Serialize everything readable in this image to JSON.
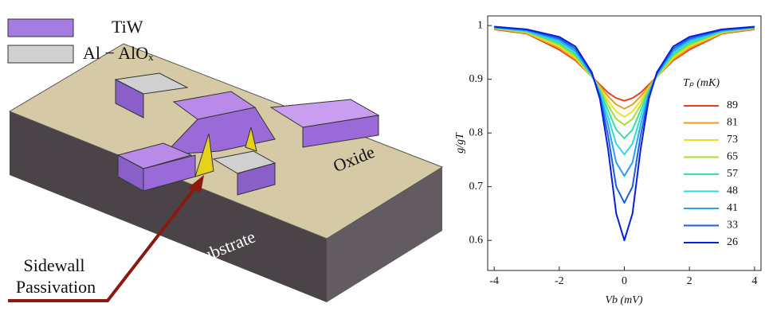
{
  "diagram": {
    "legend": [
      {
        "label": "TiW"
      },
      {
        "label": "Al − AlOₓ"
      }
    ],
    "labels": {
      "oxide": "Oxide",
      "substrate": "Si Substrate",
      "sidewall": "Sidewall",
      "passivation": "Passivation"
    }
  },
  "chart_data": {
    "type": "line",
    "xlabel": "Vb (mV)",
    "ylabel": "g/gT",
    "legend_title": "Tₚ (mK)",
    "x": [
      -4,
      -3,
      -2,
      -1.5,
      -1,
      -0.75,
      -0.5,
      -0.25,
      0,
      0.25,
      0.5,
      0.75,
      1,
      1.5,
      2,
      3,
      4
    ],
    "xlim": [
      -4.2,
      4.2
    ],
    "xticks": [
      -4,
      -2,
      0,
      2,
      4
    ],
    "ylim": [
      0.544,
      1.018
    ],
    "yticks": [
      0.6,
      0.7,
      0.8,
      0.9,
      1
    ],
    "series": [
      {
        "name": "89",
        "color": "#e8401c",
        "values": [
          0.993,
          0.985,
          0.955,
          0.935,
          0.905,
          0.89,
          0.875,
          0.865,
          0.86,
          0.865,
          0.875,
          0.89,
          0.905,
          0.935,
          0.955,
          0.985,
          0.993
        ]
      },
      {
        "name": "81",
        "color": "#f39a1a",
        "values": [
          0.994,
          0.986,
          0.958,
          0.937,
          0.905,
          0.887,
          0.868,
          0.853,
          0.845,
          0.853,
          0.868,
          0.887,
          0.905,
          0.937,
          0.958,
          0.986,
          0.994
        ]
      },
      {
        "name": "73",
        "color": "#ece020",
        "values": [
          0.995,
          0.987,
          0.961,
          0.94,
          0.905,
          0.884,
          0.86,
          0.84,
          0.83,
          0.84,
          0.86,
          0.884,
          0.905,
          0.94,
          0.961,
          0.987,
          0.995
        ]
      },
      {
        "name": "65",
        "color": "#a6e030",
        "values": [
          0.995,
          0.988,
          0.964,
          0.943,
          0.906,
          0.882,
          0.852,
          0.826,
          0.815,
          0.826,
          0.852,
          0.882,
          0.906,
          0.943,
          0.964,
          0.988,
          0.995
        ]
      },
      {
        "name": "57",
        "color": "#38e0a0",
        "values": [
          0.996,
          0.989,
          0.967,
          0.946,
          0.907,
          0.879,
          0.842,
          0.806,
          0.79,
          0.806,
          0.842,
          0.879,
          0.907,
          0.946,
          0.967,
          0.989,
          0.996
        ]
      },
      {
        "name": "48",
        "color": "#30d8e0",
        "values": [
          0.996,
          0.99,
          0.97,
          0.95,
          0.908,
          0.876,
          0.83,
          0.78,
          0.76,
          0.78,
          0.83,
          0.876,
          0.908,
          0.95,
          0.97,
          0.99,
          0.996
        ]
      },
      {
        "name": "41",
        "color": "#2aa0f0",
        "values": [
          0.997,
          0.991,
          0.973,
          0.953,
          0.909,
          0.872,
          0.815,
          0.745,
          0.72,
          0.745,
          0.815,
          0.872,
          0.909,
          0.953,
          0.973,
          0.991,
          0.997
        ]
      },
      {
        "name": "33",
        "color": "#1a5fe0",
        "values": [
          0.997,
          0.992,
          0.976,
          0.957,
          0.911,
          0.868,
          0.795,
          0.7,
          0.67,
          0.7,
          0.795,
          0.868,
          0.911,
          0.957,
          0.976,
          0.992,
          0.997
        ]
      },
      {
        "name": "26",
        "color": "#0a1ee0",
        "values": [
          0.998,
          0.993,
          0.979,
          0.961,
          0.913,
          0.863,
          0.77,
          0.65,
          0.6,
          0.65,
          0.77,
          0.863,
          0.913,
          0.961,
          0.979,
          0.993,
          0.998
        ]
      }
    ]
  }
}
